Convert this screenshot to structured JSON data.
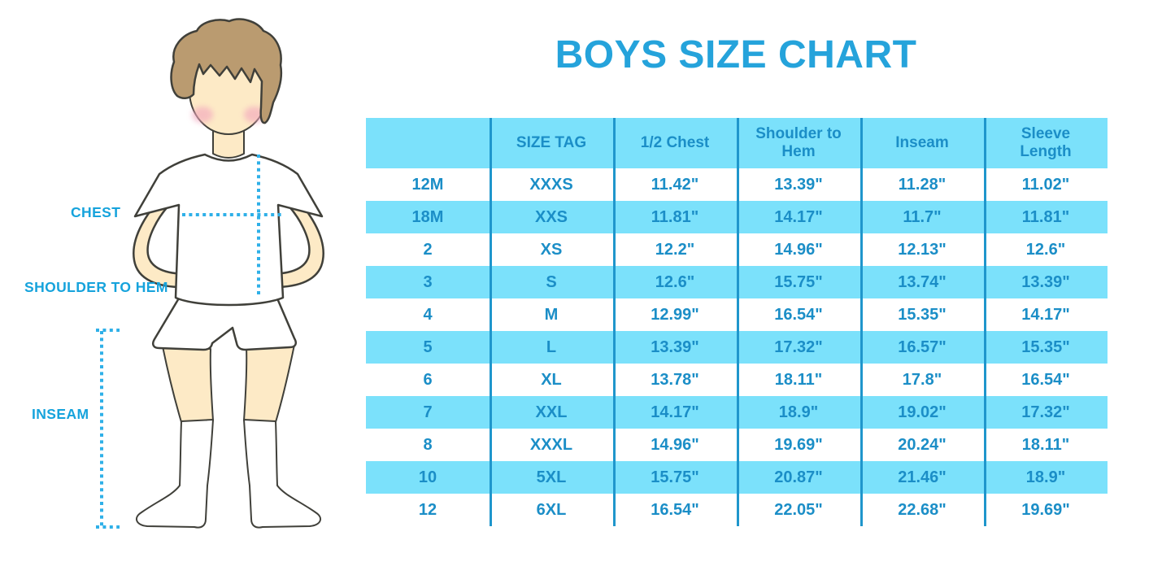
{
  "title": "BOYS SIZE CHART",
  "colors": {
    "stripe": "#7BE1FB",
    "line_blue": "#1F96CC",
    "cell_text": "#1B8EC7",
    "title_blue": "#25A3DB",
    "label_blue": "#16A3DC",
    "dotted_blue": "#2FB0E8",
    "skin": "#FDEAC6",
    "hair_brown": "#BA9B70",
    "outline": "#40403A",
    "cheek_pink": "#F3A8BE",
    "garment_white": "#FFFFFF"
  },
  "figure": {
    "labels": [
      {
        "id": "chest",
        "text": "CHEST"
      },
      {
        "id": "shoulder-to-hem",
        "text": "SHOULDER TO HEM"
      },
      {
        "id": "inseam",
        "text": "INSEAM"
      }
    ]
  },
  "chart_data": {
    "type": "table",
    "title": "BOYS SIZE CHART",
    "columns": [
      "",
      "SIZE TAG",
      "1/2 Chest",
      "Shoulder to Hem",
      "Inseam",
      "Sleeve Length"
    ],
    "rows": [
      [
        "12M",
        "XXXS",
        "11.42\"",
        "13.39\"",
        "11.28\"",
        "11.02\""
      ],
      [
        "18M",
        "XXS",
        "11.81\"",
        "14.17\"",
        "11.7\"",
        "11.81\""
      ],
      [
        "2",
        "XS",
        "12.2\"",
        "14.96\"",
        "12.13\"",
        "12.6\""
      ],
      [
        "3",
        "S",
        "12.6\"",
        "15.75\"",
        "13.74\"",
        "13.39\""
      ],
      [
        "4",
        "M",
        "12.99\"",
        "16.54\"",
        "15.35\"",
        "14.17\""
      ],
      [
        "5",
        "L",
        "13.39\"",
        "17.32\"",
        "16.57\"",
        "15.35\""
      ],
      [
        "6",
        "XL",
        "13.78\"",
        "18.11\"",
        "17.8\"",
        "16.54\""
      ],
      [
        "7",
        "XXL",
        "14.17\"",
        "18.9\"",
        "19.02\"",
        "17.32\""
      ],
      [
        "8",
        "XXXL",
        "14.96\"",
        "19.69\"",
        "20.24\"",
        "18.11\""
      ],
      [
        "10",
        "5XL",
        "15.75\"",
        "20.87\"",
        "21.46\"",
        "18.9\""
      ],
      [
        "12",
        "6XL",
        "16.54\"",
        "22.05\"",
        "22.68\"",
        "19.69\""
      ]
    ],
    "stripe_pattern": "header and alternate rows (18M, 3, 5, 7, 10) light blue"
  }
}
